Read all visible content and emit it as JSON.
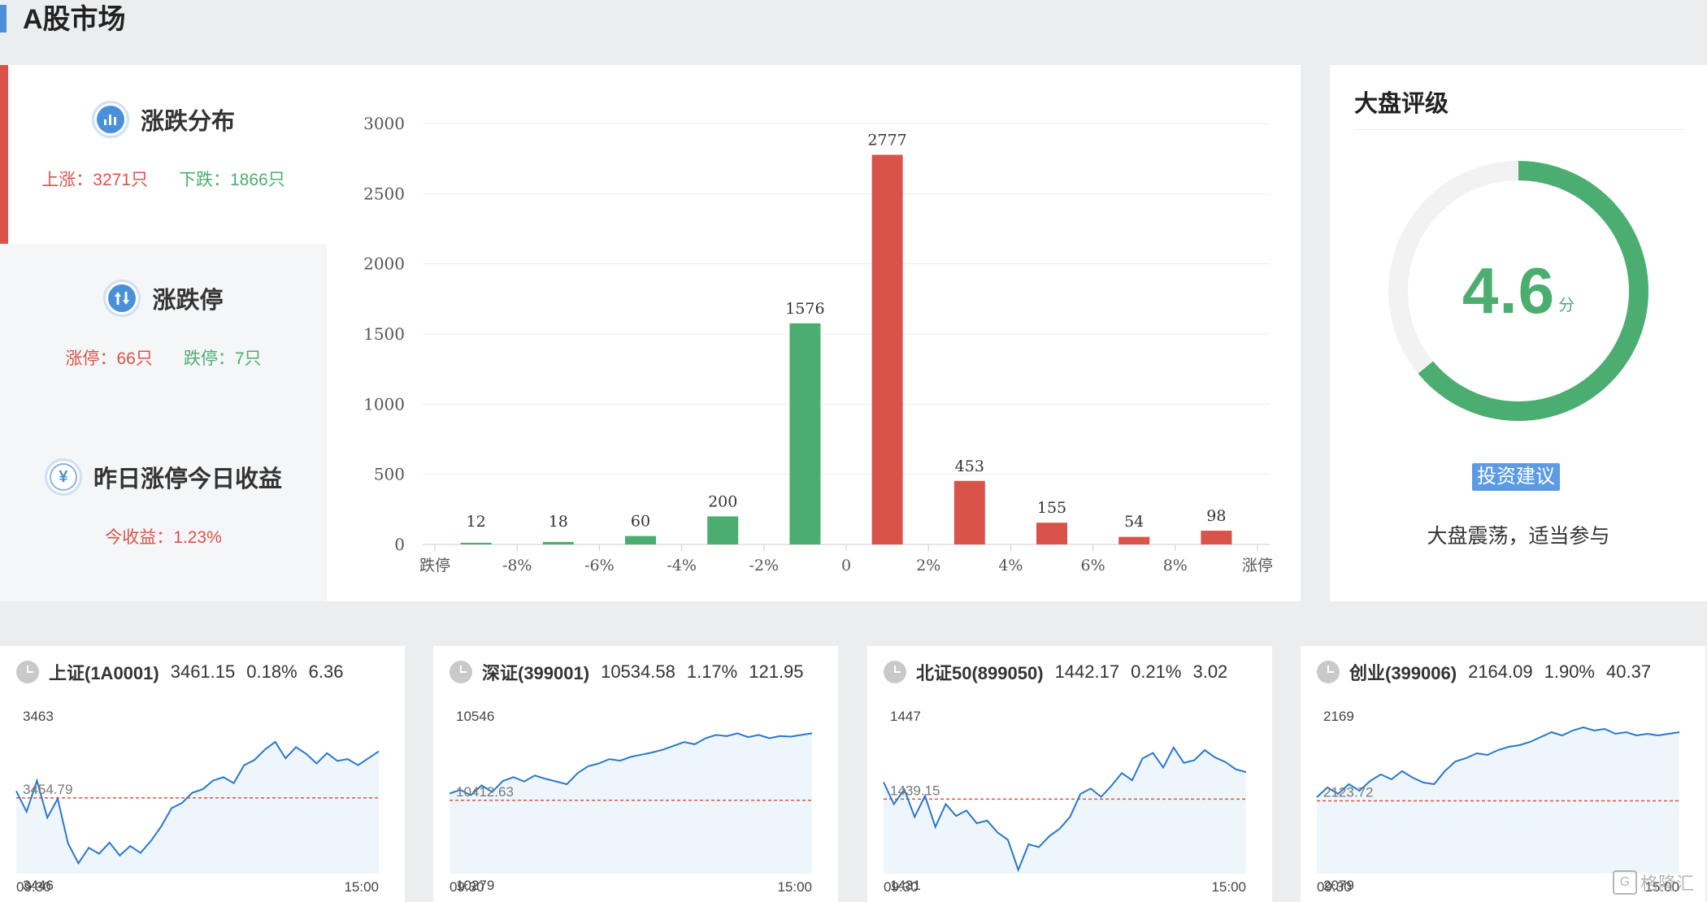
{
  "page_title": "A股市场",
  "distribution": {
    "title": "涨跌分布",
    "up": "上涨：3271只",
    "down": "下跌：1866只"
  },
  "limit": {
    "title": "涨跌停",
    "up": "涨停：66只",
    "down": "跌停：7只"
  },
  "yesterday": {
    "title": "昨日涨停今日收益",
    "icon_char": "¥",
    "return": "今收益：1.23%"
  },
  "chart_data": {
    "type": "bar",
    "categories": [
      "跌停",
      "-8%",
      "-6%",
      "-4%",
      "-2%",
      "0",
      "2%",
      "4%",
      "6%",
      "8%",
      "涨停"
    ],
    "bar_values": [
      12,
      18,
      60,
      200,
      1576,
      2777,
      453,
      155,
      54,
      98
    ],
    "bar_colors": [
      "#4bae70",
      "#4bae70",
      "#4bae70",
      "#4bae70",
      "#4bae70",
      "#d9534a",
      "#d9534a",
      "#d9534a",
      "#d9534a",
      "#d9534a"
    ],
    "yticks": [
      0,
      500,
      1000,
      1500,
      2000,
      2500,
      3000
    ],
    "ylim": [
      0,
      3000
    ],
    "title": "",
    "xlabel": "",
    "ylabel": "",
    "grid": true
  },
  "rating": {
    "title": "大盘评级",
    "score": "4.6",
    "unit": "分",
    "score_fraction": 0.64,
    "advice_label": "投资建议",
    "advice_text": "大盘震荡，适当参与"
  },
  "indices": [
    {
      "name": "上证(1A0001)",
      "price": "3461.15",
      "pct": "0.18%",
      "change": "6.36",
      "y_high": "3463",
      "y_base": "3454.79",
      "y_low": "3446",
      "t_start": "09:30",
      "t_end": "15:00",
      "series": [
        3455.6,
        3453.2,
        3456.8,
        3452.5,
        3454.7,
        3449.5,
        3447.2,
        3449.0,
        3448.3,
        3449.6,
        3448.1,
        3449.2,
        3448.4,
        3449.8,
        3451.5,
        3453.6,
        3454.2,
        3455.4,
        3455.8,
        3456.8,
        3457.2,
        3456.5,
        3458.6,
        3459.2,
        3460.4,
        3461.3,
        3459.4,
        3460.7,
        3459.9,
        3458.8,
        3460.0,
        3459.1,
        3459.3,
        3458.6,
        3459.4,
        3460.2
      ]
    },
    {
      "name": "深证(399001)",
      "price": "10534.58",
      "pct": "1.17%",
      "change": "121.95",
      "y_high": "10546",
      "y_base": "10412.63",
      "y_low": "10279",
      "t_start": "09:30",
      "t_end": "15:00",
      "series": [
        10425,
        10432,
        10422,
        10440,
        10428,
        10448,
        10455,
        10447,
        10458,
        10452,
        10447,
        10442,
        10462,
        10475,
        10480,
        10488,
        10485,
        10492,
        10496,
        10500,
        10505,
        10512,
        10519,
        10515,
        10526,
        10532,
        10530,
        10535,
        10528,
        10532,
        10526,
        10530,
        10529,
        10532,
        10535
      ]
    },
    {
      "name": "北证50(899050)",
      "price": "1442.17",
      "pct": "0.21%",
      "change": "3.02",
      "y_high": "1447",
      "y_base": "1439.15",
      "y_low": "1431",
      "t_start": "09:30",
      "t_end": "15:00",
      "series": [
        1441.0,
        1438.6,
        1440.2,
        1437.2,
        1439.5,
        1436.1,
        1438.6,
        1437.3,
        1437.9,
        1436.5,
        1436.8,
        1435.5,
        1434.7,
        1431.4,
        1434.2,
        1433.9,
        1435.1,
        1435.9,
        1437.2,
        1439.7,
        1440.3,
        1439.4,
        1440.6,
        1442.0,
        1441.2,
        1443.6,
        1444.2,
        1442.6,
        1444.8,
        1443.1,
        1443.4,
        1444.5,
        1443.7,
        1443.2,
        1442.4,
        1442.1
      ]
    },
    {
      "name": "创业(399006)",
      "price": "2164.09",
      "pct": "1.90%",
      "change": "40.37",
      "y_high": "2169",
      "y_base": "2123.72",
      "y_low": "2079",
      "t_start": "09:30",
      "t_end": "15:00",
      "series": [
        2126,
        2132,
        2128,
        2134,
        2130,
        2136,
        2140,
        2137,
        2142,
        2138,
        2135,
        2134,
        2142,
        2148,
        2150,
        2153,
        2152,
        2155,
        2157,
        2158,
        2160,
        2163,
        2166,
        2164,
        2167,
        2169,
        2167,
        2168,
        2165,
        2166,
        2164,
        2165,
        2164,
        2165,
        2166
      ]
    }
  ],
  "watermark": "格隆汇"
}
